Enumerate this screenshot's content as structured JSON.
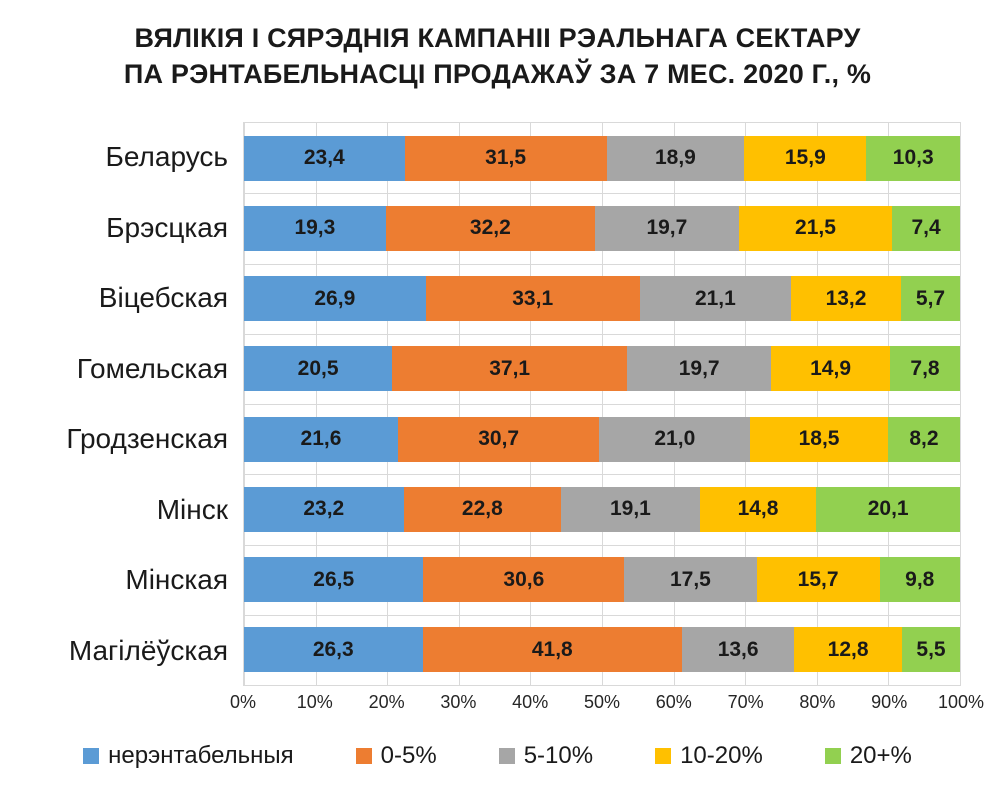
{
  "chart_data": {
    "type": "bar",
    "variant": "horizontal-stacked",
    "title_lines": [
      "ВЯЛІКІЯ І СЯРЭДНІЯ КАМПАНІІ РЭАЛЬНАГА СЕКТАРУ",
      "ПА РЭНТАБЕЛЬНАСЦІ ПРОДАЖАЎ ЗА 7 МЕС. 2020 Г., %"
    ],
    "categories": [
      "Беларусь",
      "Брэсцкая",
      "Віцебская",
      "Гомельская",
      "Гродзенская",
      "Мінск",
      "Мінская",
      "Магілёўская"
    ],
    "series": [
      {
        "name": "нерэнтабельныя",
        "color": "#5B9BD5",
        "values": [
          "23,4",
          "19,3",
          "26,9",
          "20,5",
          "21,6",
          "23,2",
          "26,5",
          "26,3"
        ]
      },
      {
        "name": "0-5%",
        "color": "#ED7D31",
        "values": [
          "31,5",
          "32,2",
          "33,1",
          "37,1",
          "30,7",
          "22,8",
          "30,6",
          "41,8"
        ]
      },
      {
        "name": "5-10%",
        "color": "#A6A6A6",
        "values": [
          "18,9",
          "19,7",
          "21,1",
          "19,7",
          "21,0",
          "19,1",
          "17,5",
          "13,6"
        ]
      },
      {
        "name": "10-20%",
        "color": "#FFC000",
        "values": [
          "15,9",
          "21,5",
          "13,2",
          "14,9",
          "18,5",
          "14,8",
          "15,7",
          "12,8"
        ]
      },
      {
        "name": "20+%",
        "color": "#92D050",
        "values": [
          "10,3",
          "7,4",
          "5,7",
          "7,8",
          "8,2",
          "20,1",
          "9,8",
          "5,5"
        ]
      }
    ],
    "value_decimal_separator": ",",
    "x_ticks": [
      "0%",
      "10%",
      "20%",
      "30%",
      "40%",
      "50%",
      "60%",
      "70%",
      "80%",
      "90%",
      "100%"
    ],
    "xlim": [
      0,
      100
    ],
    "grid": "vertical-major",
    "legend_position": "bottom",
    "colors": {
      "grid": "#D9D9D9",
      "title_text": "#1A1A1A",
      "category_text": "#1A1A1A",
      "value_text": "#1A1A1A",
      "tick_text": "#262626",
      "background": "#FFFFFF"
    }
  }
}
